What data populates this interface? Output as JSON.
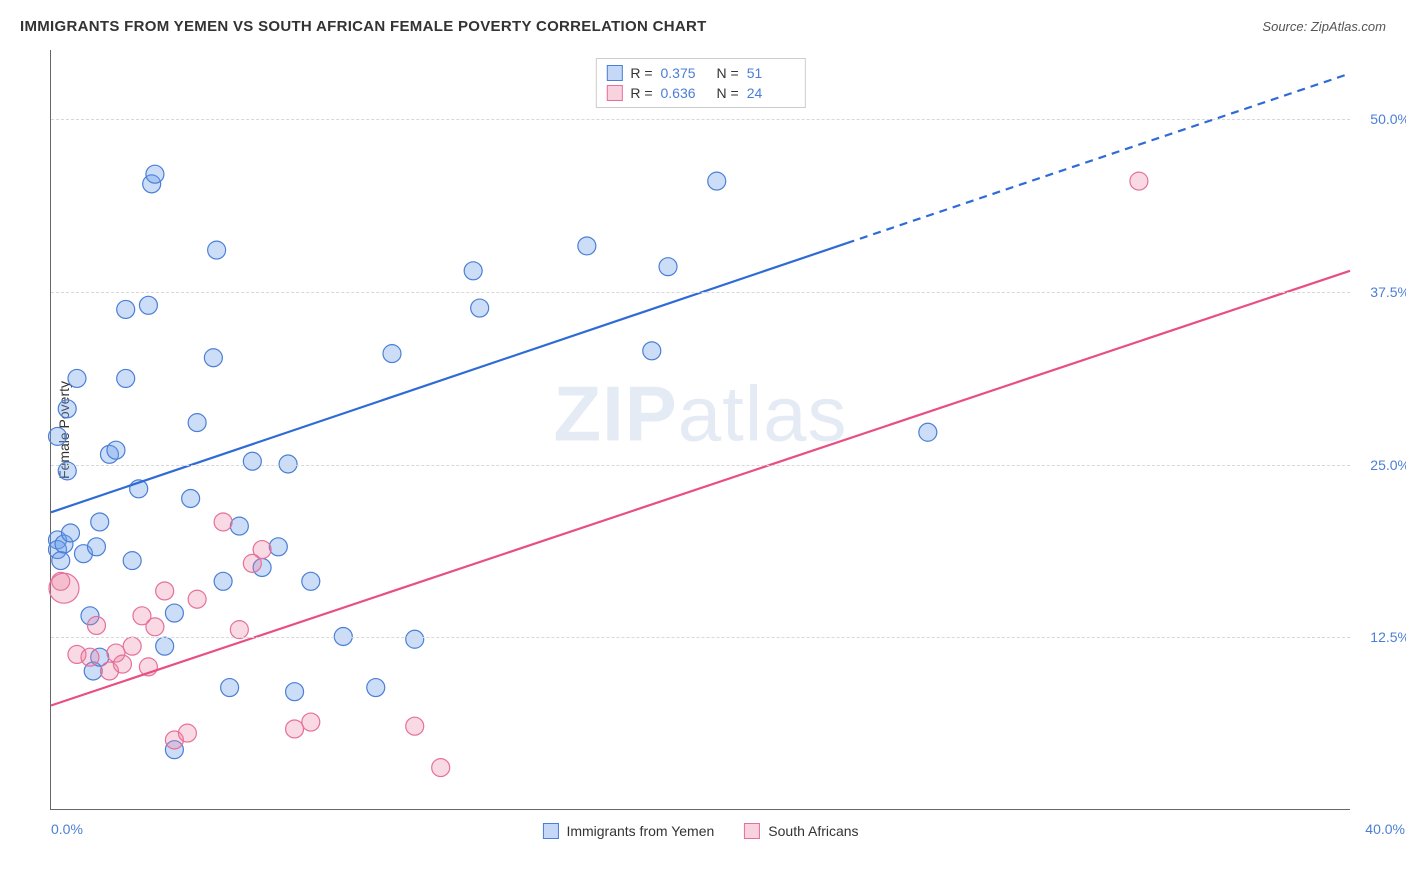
{
  "title": "IMMIGRANTS FROM YEMEN VS SOUTH AFRICAN FEMALE POVERTY CORRELATION CHART",
  "source_label": "Source:",
  "source_name": "ZipAtlas.com",
  "y_axis_label": "Female Poverty",
  "watermark_text_bold": "ZIP",
  "watermark_text_rest": "atlas",
  "chart": {
    "type": "scatter",
    "xlim": [
      0,
      40
    ],
    "ylim": [
      0,
      55
    ],
    "x_tick_min_label": "0.0%",
    "x_tick_max_label": "40.0%",
    "y_tick_labels": [
      "12.5%",
      "25.0%",
      "37.5%",
      "50.0%"
    ],
    "y_tick_values": [
      12.5,
      25.0,
      37.5,
      50.0
    ],
    "grid_color": "#d8d8d8",
    "background_color": "#ffffff",
    "axis_color": "#666666",
    "tick_label_color": "#4b7fd6",
    "marker_radius": 9,
    "marker_radius_large": 15,
    "marker_stroke_width": 1.2,
    "series": [
      {
        "name": "Immigrants from Yemen",
        "color_fill": "rgba(109,158,235,0.35)",
        "color_stroke": "#4b7fd6",
        "r_value": "0.375",
        "n_value": "51",
        "trend": {
          "x1": 0,
          "y1": 21.5,
          "x2": 24.5,
          "y2": 41,
          "dashed_x2": 40,
          "dashed_y2": 53.3,
          "color": "#2f6bd6",
          "width": 2.2
        },
        "points": [
          [
            0.2,
            19.5
          ],
          [
            0.2,
            18.8
          ],
          [
            0.3,
            18.0
          ],
          [
            0.4,
            19.2
          ],
          [
            0.6,
            20.0
          ],
          [
            0.2,
            27.0
          ],
          [
            0.5,
            24.5
          ],
          [
            0.5,
            29.0
          ],
          [
            0.8,
            31.2
          ],
          [
            1.0,
            18.5
          ],
          [
            1.2,
            14.0
          ],
          [
            1.3,
            10.0
          ],
          [
            1.5,
            11.0
          ],
          [
            1.4,
            19.0
          ],
          [
            1.5,
            20.8
          ],
          [
            1.8,
            25.7
          ],
          [
            2.0,
            26.0
          ],
          [
            2.3,
            31.2
          ],
          [
            2.3,
            36.2
          ],
          [
            2.5,
            18.0
          ],
          [
            2.7,
            23.2
          ],
          [
            3.0,
            36.5
          ],
          [
            3.1,
            45.3
          ],
          [
            3.2,
            46.0
          ],
          [
            3.5,
            11.8
          ],
          [
            3.8,
            14.2
          ],
          [
            3.8,
            4.3
          ],
          [
            4.3,
            22.5
          ],
          [
            4.5,
            28.0
          ],
          [
            5.0,
            32.7
          ],
          [
            5.1,
            40.5
          ],
          [
            5.3,
            16.5
          ],
          [
            5.5,
            8.8
          ],
          [
            5.8,
            20.5
          ],
          [
            6.2,
            25.2
          ],
          [
            6.5,
            17.5
          ],
          [
            7.0,
            19.0
          ],
          [
            7.3,
            25.0
          ],
          [
            7.5,
            8.5
          ],
          [
            8.0,
            16.5
          ],
          [
            9.0,
            12.5
          ],
          [
            10.0,
            8.8
          ],
          [
            10.5,
            33.0
          ],
          [
            11.2,
            12.3
          ],
          [
            13.0,
            39.0
          ],
          [
            13.2,
            36.3
          ],
          [
            16.5,
            40.8
          ],
          [
            18.5,
            33.2
          ],
          [
            19.0,
            39.3
          ],
          [
            20.5,
            45.5
          ],
          [
            27.0,
            27.3
          ]
        ]
      },
      {
        "name": "South Africans",
        "color_fill": "rgba(234,128,163,0.30)",
        "color_stroke": "#e6709a",
        "r_value": "0.636",
        "n_value": "24",
        "trend": {
          "x1": 0,
          "y1": 7.5,
          "x2": 40,
          "y2": 39.0,
          "color": "#e84f80",
          "width": 2.2
        },
        "points": [
          [
            0.3,
            16.5
          ],
          [
            0.8,
            11.2
          ],
          [
            1.2,
            11.0
          ],
          [
            1.4,
            13.3
          ],
          [
            1.8,
            10.0
          ],
          [
            2.0,
            11.3
          ],
          [
            2.2,
            10.5
          ],
          [
            2.5,
            11.8
          ],
          [
            2.8,
            14.0
          ],
          [
            3.0,
            10.3
          ],
          [
            3.2,
            13.2
          ],
          [
            3.5,
            15.8
          ],
          [
            3.8,
            5.0
          ],
          [
            4.2,
            5.5
          ],
          [
            4.5,
            15.2
          ],
          [
            5.3,
            20.8
          ],
          [
            5.8,
            13.0
          ],
          [
            6.2,
            17.8
          ],
          [
            6.5,
            18.8
          ],
          [
            7.5,
            5.8
          ],
          [
            8.0,
            6.3
          ],
          [
            11.2,
            6.0
          ],
          [
            12.0,
            3.0
          ],
          [
            33.5,
            45.5
          ]
        ],
        "points_large": [
          [
            0.4,
            16.0
          ]
        ]
      }
    ],
    "top_legend": {
      "r_label": "R =",
      "n_label": "N ="
    },
    "bottom_legend": [
      {
        "label": "Immigrants from Yemen",
        "swatch": "blue"
      },
      {
        "label": "South Africans",
        "swatch": "pink"
      }
    ]
  }
}
